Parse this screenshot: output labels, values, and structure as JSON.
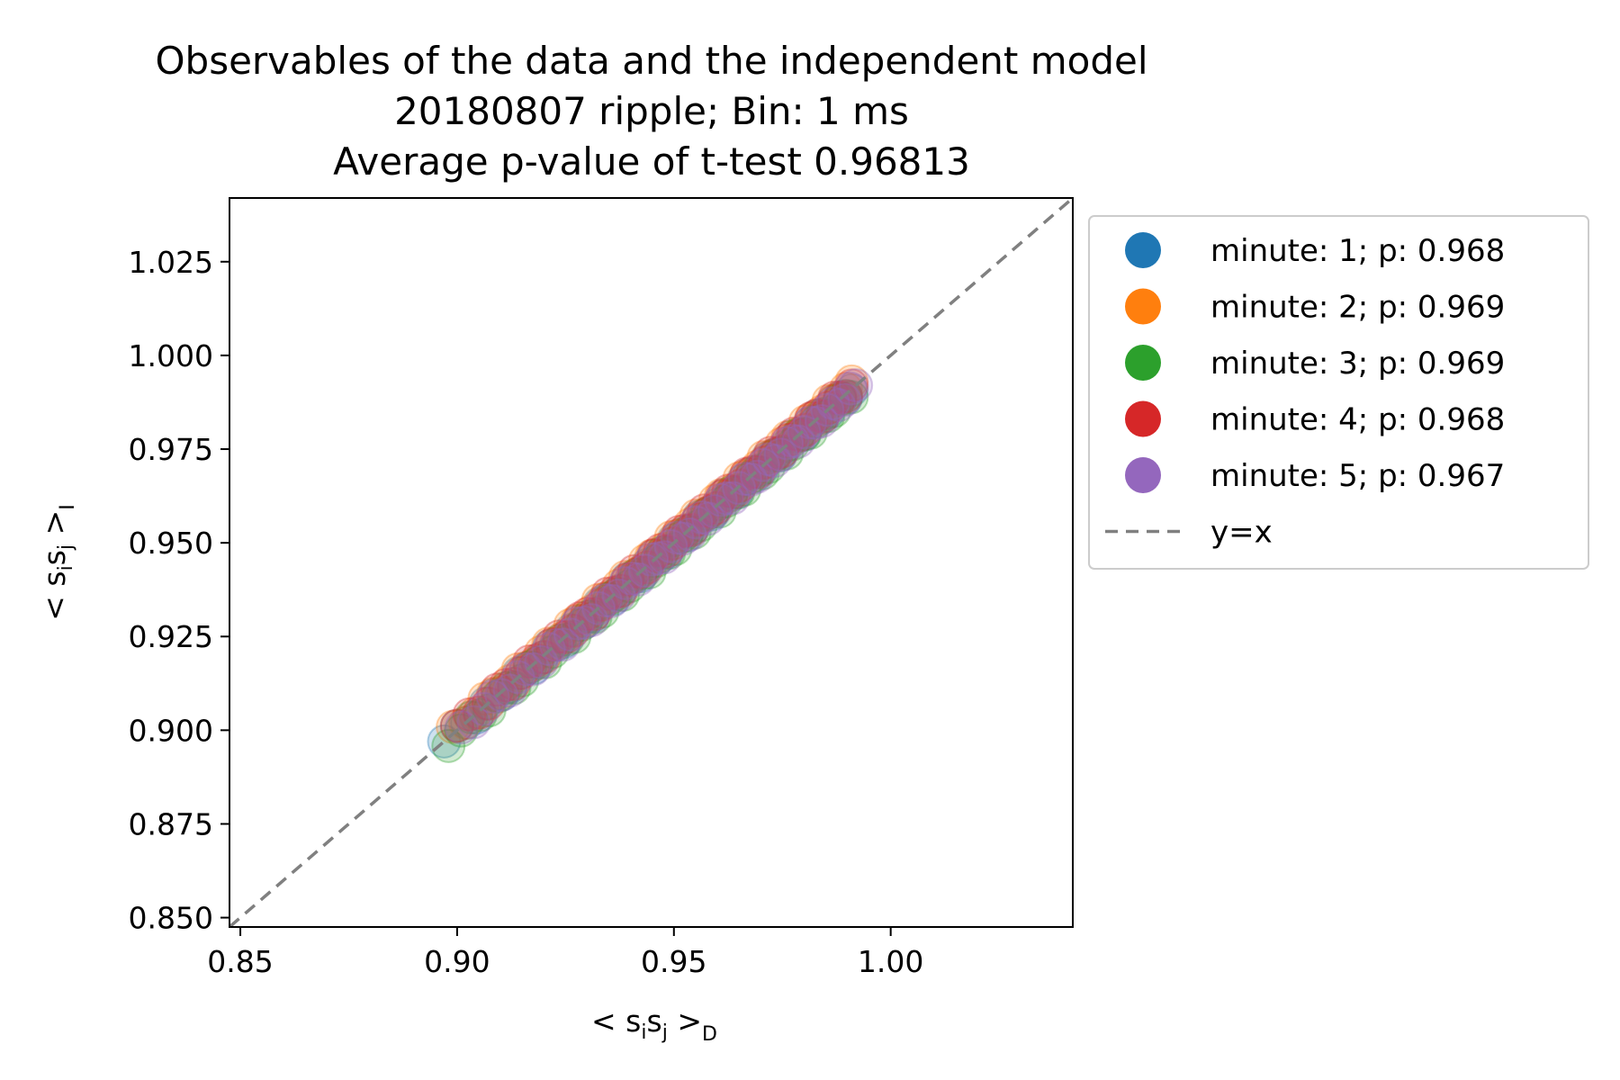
{
  "chart_data": {
    "type": "scatter",
    "title_lines": [
      "Observables of the data and the independent model",
      "20180807 ripple; Bin: 1 ms",
      "Average p-value of t-test 0.96813"
    ],
    "xlabel": {
      "main": "< s",
      "i": "i",
      "s2": "s",
      "j": "j",
      "gt": " >",
      "sub": "D"
    },
    "ylabel": {
      "main": "< s",
      "i": "i",
      "s2": "s",
      "j": "j",
      "gt": " >",
      "sub": "I"
    },
    "xlim": [
      0.8475,
      1.042
    ],
    "ylim": [
      0.8475,
      1.042
    ],
    "x_ticks": [
      0.85,
      0.9,
      0.95,
      1.0
    ],
    "x_tick_labels": [
      "0.85",
      "0.90",
      "0.95",
      "1.00"
    ],
    "y_ticks": [
      0.85,
      0.875,
      0.9,
      0.925,
      0.95,
      0.975,
      1.0,
      1.025
    ],
    "y_tick_labels": [
      "0.850",
      "0.875",
      "0.900",
      "0.925",
      "0.950",
      "0.975",
      "1.000",
      "1.025"
    ],
    "grid": false,
    "legend_position": "outside-right-top",
    "series": [
      {
        "name": "minute: 1; p: 0.968",
        "color": "#1f77b4",
        "x_range": [
          0.897,
          0.991
        ],
        "offset": 0.0
      },
      {
        "name": "minute: 2; p: 0.969",
        "color": "#ff7f0e",
        "x_range": [
          0.899,
          0.991
        ],
        "offset": 0.001
      },
      {
        "name": "minute: 3; p: 0.969",
        "color": "#2ca02c",
        "x_range": [
          0.898,
          0.991
        ],
        "offset": -0.001
      },
      {
        "name": "minute: 4; p: 0.968",
        "color": "#d62728",
        "x_range": [
          0.9,
          0.991
        ],
        "offset": 0.0005
      },
      {
        "name": "minute: 5; p: 0.967",
        "color": "#9467bd",
        "x_range": [
          0.901,
          0.992
        ],
        "offset": -0.0005
      }
    ],
    "reference_line": {
      "name": "y=x",
      "color": "#808080",
      "style": "dashed"
    }
  }
}
